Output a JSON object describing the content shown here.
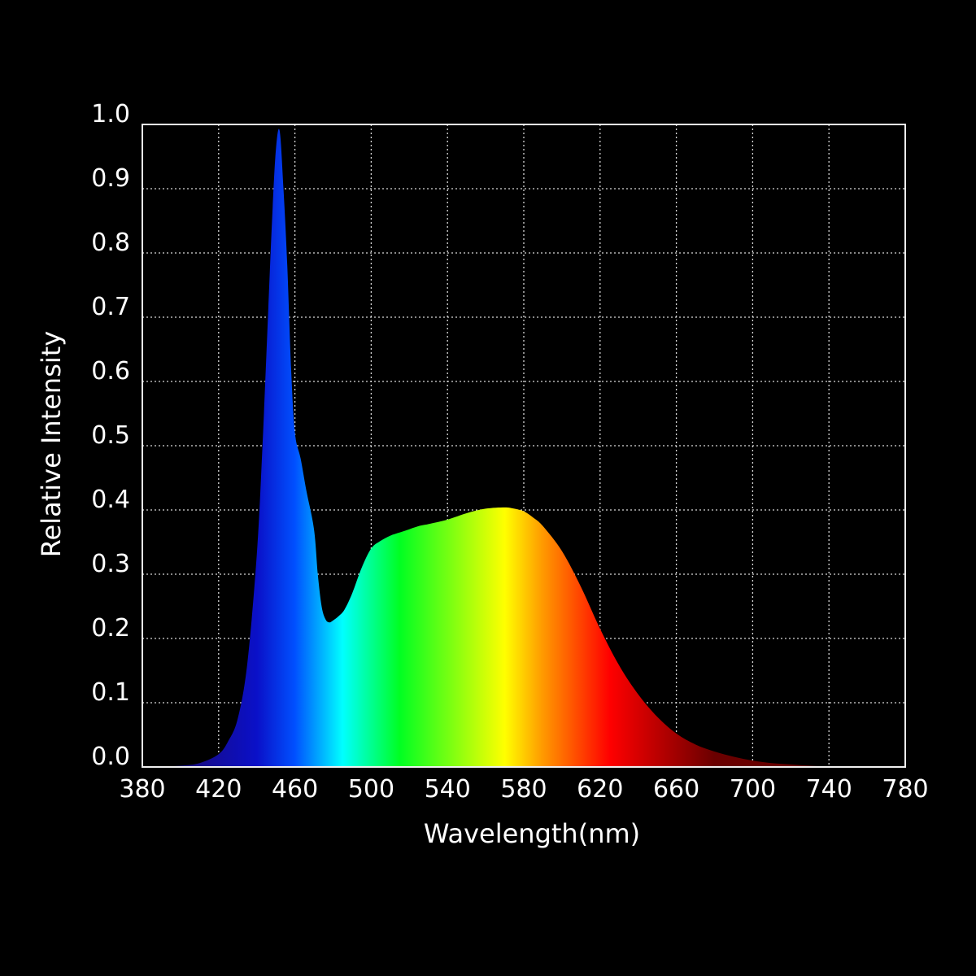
{
  "chart_data": {
    "type": "area",
    "title": "",
    "xlabel": "Wavelength(nm)",
    "ylabel": "Relative Intensity",
    "xlim": [
      380,
      780
    ],
    "ylim": [
      0,
      1.0
    ],
    "grid": true,
    "legend": "none",
    "xticks": [
      380,
      420,
      460,
      500,
      540,
      580,
      620,
      660,
      700,
      740,
      780
    ],
    "xtick_labels": [
      "380",
      "420",
      "460",
      "500",
      "540",
      "580",
      "620",
      "660",
      "700",
      "740",
      "780"
    ],
    "yticks": [
      0,
      0.1,
      0.2,
      0.3,
      0.4,
      0.5,
      0.6,
      0.7,
      0.8,
      0.9,
      1.0
    ],
    "ytick_labels": [
      "0.0",
      "0.1",
      "0.2",
      "0.3",
      "0.4",
      "0.5",
      "0.6",
      "0.7",
      "0.8",
      "0.9",
      "1.0"
    ],
    "series": [
      {
        "x": [
          385,
          400,
          410,
          420,
          425,
          430,
          435,
          440,
          443,
          446,
          448,
          450,
          452,
          454,
          456,
          458,
          460,
          463,
          466,
          470,
          472,
          474,
          476,
          478,
          480,
          483,
          486,
          490,
          495,
          500,
          505,
          510,
          515,
          520,
          525,
          530,
          540,
          550,
          560,
          570,
          575,
          580,
          585,
          590,
          600,
          610,
          620,
          630,
          640,
          650,
          660,
          670,
          680,
          690,
          700,
          710,
          720,
          730,
          740,
          750,
          760,
          770,
          780
        ],
        "y": [
          0.0,
          0.002,
          0.006,
          0.02,
          0.04,
          0.075,
          0.16,
          0.33,
          0.5,
          0.71,
          0.85,
          0.96,
          0.99,
          0.9,
          0.78,
          0.62,
          0.52,
          0.48,
          0.43,
          0.37,
          0.3,
          0.25,
          0.23,
          0.225,
          0.228,
          0.235,
          0.245,
          0.27,
          0.31,
          0.34,
          0.352,
          0.36,
          0.365,
          0.37,
          0.375,
          0.378,
          0.385,
          0.395,
          0.402,
          0.404,
          0.402,
          0.398,
          0.388,
          0.375,
          0.336,
          0.28,
          0.215,
          0.158,
          0.113,
          0.078,
          0.052,
          0.035,
          0.024,
          0.016,
          0.01,
          0.006,
          0.004,
          0.002,
          0.001,
          0.0008,
          0.0005,
          0.0002,
          0.0
        ]
      }
    ],
    "spectrum_colors": {
      "violet": "#1a0a7a",
      "deep_blue": "#0a10c8",
      "blue": "#0050ff",
      "cyan": "#00ffff",
      "green": "#00ff22",
      "yellow": "#ffff00",
      "orange": "#ff9900",
      "red": "#ff0000",
      "dark_red": "#6a0000"
    },
    "background_color": "#000000",
    "grid_color": "#d8d8d8"
  }
}
